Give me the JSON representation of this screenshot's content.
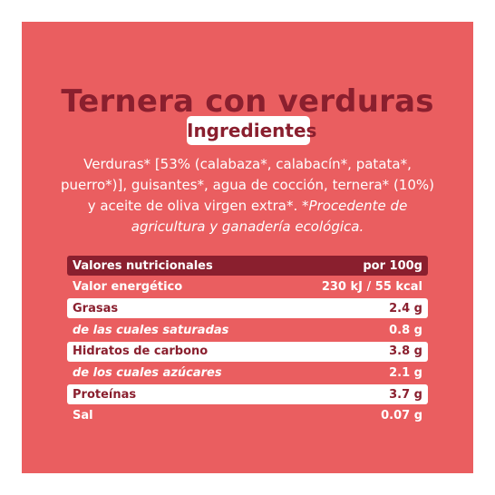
{
  "product": {
    "title": "Ternera con verduras"
  },
  "ingredients": {
    "heading": "Ingredientes",
    "text": "Verduras* [53% (calabaza*, calabacín*, patata*, puerro*)], guisantes*, agua de cocción, ternera* (10%) y aceite de oliva virgen extra*.",
    "note": "*Procedente de agricultura y ganadería ecológica."
  },
  "nutrition": {
    "header": {
      "label": "Valores nutricionales",
      "value": "por 100g"
    },
    "rows": [
      {
        "label": "Valor energético",
        "value": "230 kJ / 55 kcal"
      },
      {
        "label": "Grasas",
        "value": "2.4 g"
      },
      {
        "label": "de las cuales saturadas",
        "value": "0.8 g"
      },
      {
        "label": "Hidratos de carbono",
        "value": "3.8 g"
      },
      {
        "label": "de los cuales azúcares",
        "value": "2.1 g"
      },
      {
        "label": "Proteínas",
        "value": "3.7 g"
      },
      {
        "label": "Sal",
        "value": "0.07 g"
      }
    ]
  },
  "colors": {
    "background": "#ea5e60",
    "accent": "#8a1f2e",
    "text_light": "#ffffff"
  }
}
